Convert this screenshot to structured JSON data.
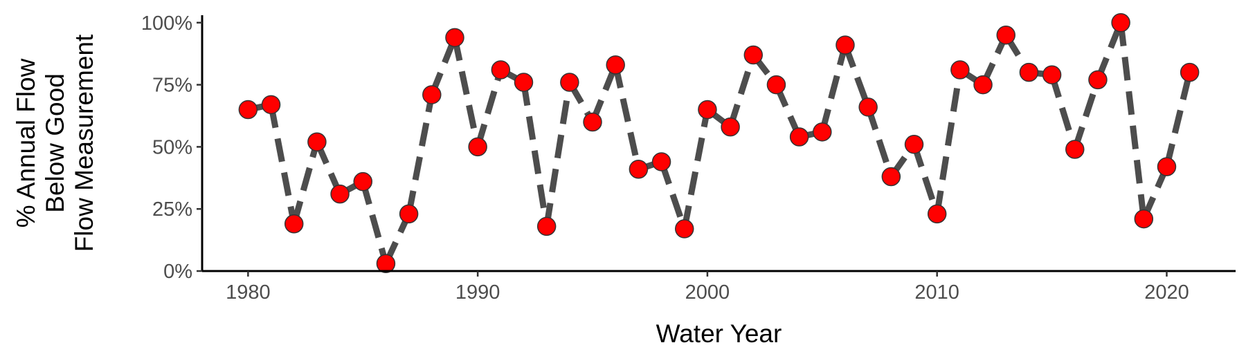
{
  "chart_data": {
    "type": "line",
    "xlabel": "Water Year",
    "ylabel": "% Annual Flow Below Good Flow Measurement",
    "ylabel_lines": [
      "% Annual Flow",
      "Below Good",
      "Flow Measurement"
    ],
    "xlim": [
      1978,
      2023
    ],
    "ylim": [
      0,
      1.03
    ],
    "x_ticks": [
      1980,
      1990,
      2000,
      2010,
      2020
    ],
    "x_tick_labels": [
      "1980",
      "1990",
      "2000",
      "2010",
      "2020"
    ],
    "y_ticks": [
      0,
      0.25,
      0.5,
      0.75,
      1.0
    ],
    "y_tick_labels": [
      "0%",
      "25%",
      "50%",
      "75%",
      "100%"
    ],
    "grid": false,
    "line_style": "dashed",
    "line_color": "#4d4d4d",
    "point_color": "#ff0000",
    "point_edge_color": "#333333",
    "series": [
      {
        "x": [
          1980,
          1981,
          1982,
          1983,
          1984,
          1985,
          1986,
          1987,
          1988,
          1989,
          1990,
          1991,
          1992,
          1993,
          1994,
          1995,
          1996,
          1997,
          1998,
          1999,
          2000,
          2001,
          2002,
          2003,
          2004,
          2005,
          2006,
          2007,
          2008,
          2009,
          2010,
          2011,
          2012,
          2013,
          2014,
          2015,
          2016,
          2017,
          2018,
          2019,
          2020,
          2021
        ],
        "values": [
          0.65,
          0.67,
          0.19,
          0.52,
          0.31,
          0.36,
          0.03,
          0.23,
          0.71,
          0.94,
          0.5,
          0.81,
          0.76,
          0.18,
          0.76,
          0.6,
          0.83,
          0.41,
          0.44,
          0.17,
          0.65,
          0.58,
          0.87,
          0.75,
          0.54,
          0.56,
          0.91,
          0.66,
          0.38,
          0.51,
          0.23,
          0.81,
          0.75,
          0.95,
          0.8,
          0.79,
          0.49,
          0.77,
          1.0,
          0.21,
          0.42,
          0.8
        ]
      }
    ]
  }
}
